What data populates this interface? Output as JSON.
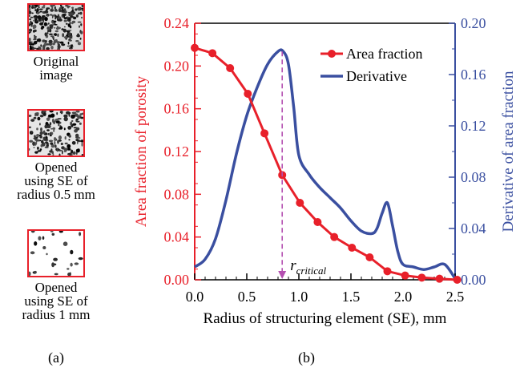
{
  "panel_a": {
    "label": "(a)",
    "items": [
      {
        "caption": [
          "Original",
          "image"
        ]
      },
      {
        "caption": [
          "Opened",
          "using SE of",
          "radius 0.5 mm"
        ]
      },
      {
        "caption": [
          "Opened",
          "using SE of",
          "radius 1 mm"
        ]
      }
    ]
  },
  "panel_b": {
    "label": "(b)"
  },
  "colors": {
    "area": "#e8202a",
    "derivative": "#3a4fa0",
    "thumb_border": "#e8202a"
  },
  "chart_data": {
    "type": "line",
    "xlabel": "Radius of structuring element (SE), mm",
    "ylabel_left": "Area fraction of porosity",
    "ylabel_right": "Derivative of area fraction",
    "xlim": [
      0,
      2.5
    ],
    "ylim_left": [
      0,
      0.24
    ],
    "ylim_right": [
      0,
      0.2
    ],
    "xticks": [
      "0.0",
      "0.5",
      "1.0",
      "1.5",
      "2.0",
      "2.5"
    ],
    "yticks_left": [
      "0.00",
      "0.04",
      "0.08",
      "0.12",
      "0.16",
      "0.20",
      "0.24"
    ],
    "yticks_right": [
      "0.00",
      "0.04",
      "0.08",
      "0.12",
      "0.16",
      "0.20"
    ],
    "legend_position": "top-right",
    "annotation": {
      "text_main": "r",
      "text_sub": "critical",
      "x": 0.84
    },
    "series": [
      {
        "name": "Area fraction",
        "axis": "left",
        "marker": "circle",
        "x": [
          0.0,
          0.17,
          0.34,
          0.51,
          0.67,
          0.84,
          1.01,
          1.18,
          1.34,
          1.51,
          1.68,
          1.85,
          2.02,
          2.18,
          2.35,
          2.52
        ],
        "y": [
          0.217,
          0.212,
          0.198,
          0.174,
          0.137,
          0.098,
          0.072,
          0.054,
          0.04,
          0.03,
          0.021,
          0.008,
          0.004,
          0.002,
          0.001,
          0.0
        ]
      },
      {
        "name": "Derivative",
        "axis": "right",
        "x": [
          0.0,
          0.1,
          0.2,
          0.3,
          0.4,
          0.5,
          0.6,
          0.7,
          0.8,
          0.85,
          0.9,
          0.95,
          1.0,
          1.1,
          1.2,
          1.3,
          1.4,
          1.5,
          1.6,
          1.7,
          1.75,
          1.8,
          1.85,
          1.9,
          1.95,
          2.0,
          2.1,
          2.2,
          2.3,
          2.4,
          2.5
        ],
        "y": [
          0.01,
          0.016,
          0.032,
          0.062,
          0.098,
          0.128,
          0.15,
          0.168,
          0.178,
          0.178,
          0.168,
          0.135,
          0.097,
          0.082,
          0.072,
          0.064,
          0.056,
          0.046,
          0.038,
          0.036,
          0.04,
          0.052,
          0.06,
          0.042,
          0.022,
          0.012,
          0.01,
          0.008,
          0.01,
          0.012,
          0.001
        ]
      }
    ]
  }
}
